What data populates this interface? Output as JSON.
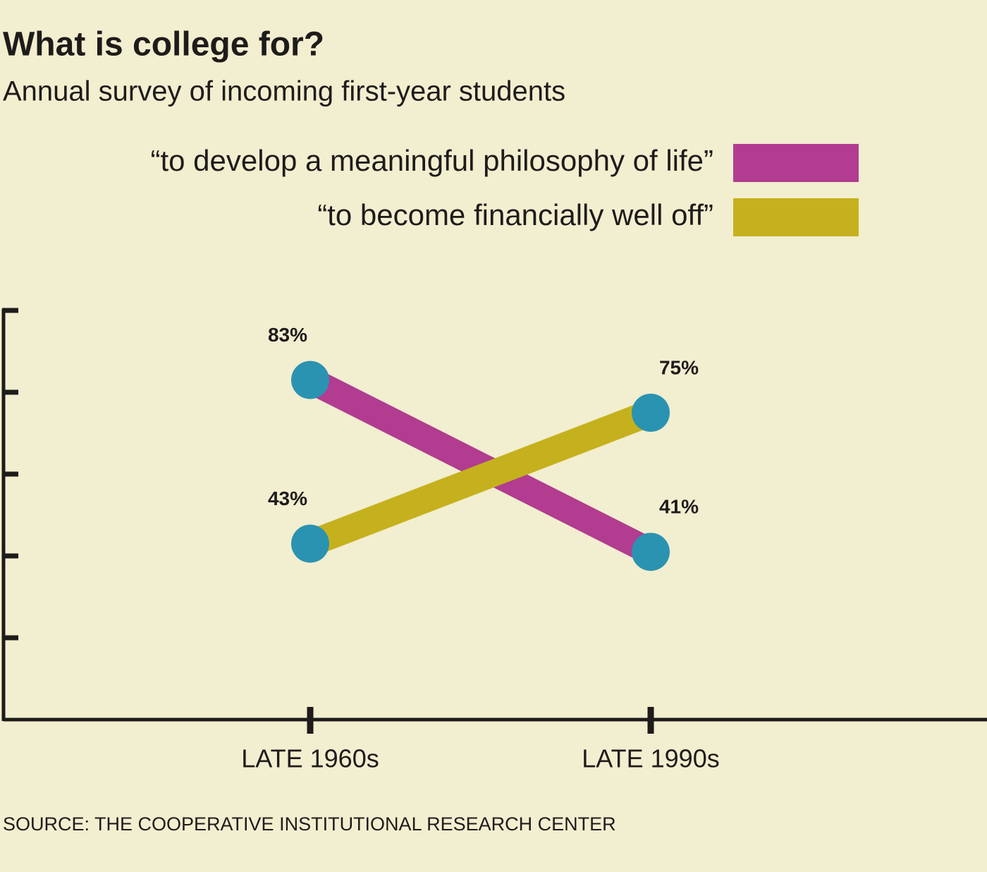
{
  "chart_data": {
    "type": "line",
    "title": "What is college for?",
    "subtitle": "Annual survey of incoming first-year students",
    "source": "SOURCE: THE COOPERATIVE INSTITUTIONAL RESEARCH CENTER",
    "categories": [
      "LATE 1960s",
      "LATE 1990s"
    ],
    "series": [
      {
        "name": "“to develop a meaningful philosophy of life”",
        "color": "#b13c90",
        "values": [
          83,
          41
        ],
        "value_labels": [
          "83%",
          "41%"
        ]
      },
      {
        "name": "“to become financially well off”",
        "color": "#c5b11d",
        "values": [
          43,
          75
        ],
        "value_labels": [
          "43%",
          "75%"
        ]
      }
    ],
    "marker_color": "#2a93b1",
    "ylim": [
      0,
      100
    ],
    "yticks": [
      20,
      40,
      60,
      80,
      100
    ],
    "legend": "top-right"
  }
}
